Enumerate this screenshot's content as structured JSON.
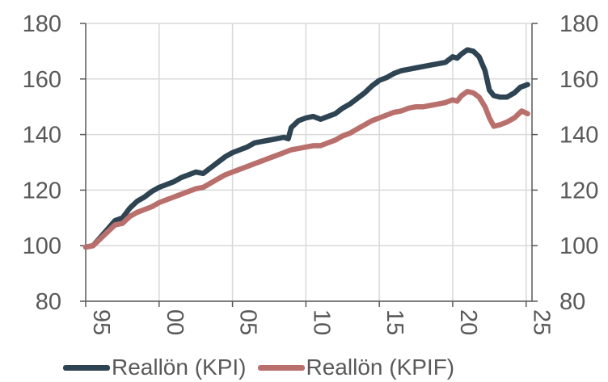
{
  "chart_data": {
    "type": "line",
    "title": "",
    "xlabel": "",
    "ylabel": "",
    "xlim": [
      1995,
      2025.4
    ],
    "ylim": [
      80,
      180
    ],
    "y_ticks": [
      "80",
      "100",
      "120",
      "140",
      "160",
      "180"
    ],
    "x_ticks": [
      {
        "value": 1995,
        "label": "95"
      },
      {
        "value": 2000,
        "label": "00"
      },
      {
        "value": 2005,
        "label": "05"
      },
      {
        "value": 2010,
        "label": "10"
      },
      {
        "value": 2015,
        "label": "15"
      },
      {
        "value": 2020,
        "label": "20"
      },
      {
        "value": 2025,
        "label": "25"
      }
    ],
    "grid": true,
    "secondary_y_axis": true,
    "legend_position": "bottom",
    "series": [
      {
        "name": "Reallön (KPI)",
        "color": "#2e4453",
        "points": [
          [
            1995.0,
            99.5
          ],
          [
            1995.5,
            100
          ],
          [
            1996.0,
            103
          ],
          [
            1996.5,
            106
          ],
          [
            1997.0,
            109
          ],
          [
            1997.5,
            110
          ],
          [
            1998.0,
            113.5
          ],
          [
            1998.5,
            116
          ],
          [
            1999.0,
            117.5
          ],
          [
            1999.5,
            119.5
          ],
          [
            2000.0,
            121
          ],
          [
            2000.5,
            122
          ],
          [
            2001.0,
            123
          ],
          [
            2001.5,
            124.5
          ],
          [
            2002.0,
            125.5
          ],
          [
            2002.5,
            126.5
          ],
          [
            2003.0,
            126
          ],
          [
            2003.5,
            128
          ],
          [
            2004.0,
            130
          ],
          [
            2004.5,
            132
          ],
          [
            2005.0,
            133.5
          ],
          [
            2005.5,
            134.5
          ],
          [
            2006.0,
            135.5
          ],
          [
            2006.5,
            137
          ],
          [
            2007.0,
            137.5
          ],
          [
            2007.5,
            138
          ],
          [
            2008.0,
            138.5
          ],
          [
            2008.5,
            139
          ],
          [
            2008.8,
            138.5
          ],
          [
            2009.0,
            142.5
          ],
          [
            2009.5,
            145
          ],
          [
            2010.0,
            146
          ],
          [
            2010.5,
            146.5
          ],
          [
            2011.0,
            145.5
          ],
          [
            2011.5,
            146.5
          ],
          [
            2012.0,
            147.5
          ],
          [
            2012.5,
            149.5
          ],
          [
            2013.0,
            151
          ],
          [
            2013.5,
            153
          ],
          [
            2014.0,
            155
          ],
          [
            2014.5,
            157.5
          ],
          [
            2015.0,
            159.5
          ],
          [
            2015.5,
            160.5
          ],
          [
            2016.0,
            162
          ],
          [
            2016.5,
            163
          ],
          [
            2017.0,
            163.5
          ],
          [
            2017.5,
            164
          ],
          [
            2018.0,
            164.5
          ],
          [
            2018.5,
            165
          ],
          [
            2019.0,
            165.5
          ],
          [
            2019.5,
            166
          ],
          [
            2020.0,
            168
          ],
          [
            2020.3,
            167.5
          ],
          [
            2020.6,
            169
          ],
          [
            2021.0,
            170.5
          ],
          [
            2021.4,
            170
          ],
          [
            2021.8,
            168
          ],
          [
            2022.2,
            163
          ],
          [
            2022.5,
            156
          ],
          [
            2022.8,
            154
          ],
          [
            2023.2,
            153.5
          ],
          [
            2023.7,
            153.5
          ],
          [
            2024.2,
            155
          ],
          [
            2024.6,
            157
          ],
          [
            2025.1,
            158
          ]
        ]
      },
      {
        "name": "Reallön (KPIF)",
        "color": "#b9706c",
        "points": [
          [
            1995.0,
            99.5
          ],
          [
            1995.5,
            100
          ],
          [
            1996.0,
            102.5
          ],
          [
            1996.5,
            105
          ],
          [
            1997.0,
            107.5
          ],
          [
            1997.5,
            108
          ],
          [
            1998.0,
            110.5
          ],
          [
            1998.5,
            112
          ],
          [
            1999.0,
            113
          ],
          [
            1999.5,
            114
          ],
          [
            2000.0,
            115.5
          ],
          [
            2000.5,
            116.5
          ],
          [
            2001.0,
            117.5
          ],
          [
            2001.5,
            118.5
          ],
          [
            2002.0,
            119.5
          ],
          [
            2002.5,
            120.5
          ],
          [
            2003.0,
            121
          ],
          [
            2003.5,
            122.5
          ],
          [
            2004.0,
            124
          ],
          [
            2004.5,
            125.5
          ],
          [
            2005.0,
            126.5
          ],
          [
            2005.5,
            127.5
          ],
          [
            2006.0,
            128.5
          ],
          [
            2006.5,
            129.5
          ],
          [
            2007.0,
            130.5
          ],
          [
            2007.5,
            131.5
          ],
          [
            2008.0,
            132.5
          ],
          [
            2008.5,
            133.5
          ],
          [
            2009.0,
            134.5
          ],
          [
            2009.5,
            135
          ],
          [
            2010.0,
            135.5
          ],
          [
            2010.5,
            136
          ],
          [
            2011.0,
            136
          ],
          [
            2011.5,
            137
          ],
          [
            2012.0,
            138
          ],
          [
            2012.5,
            139.5
          ],
          [
            2013.0,
            140.5
          ],
          [
            2013.5,
            142
          ],
          [
            2014.0,
            143.5
          ],
          [
            2014.5,
            145
          ],
          [
            2015.0,
            146
          ],
          [
            2015.5,
            147
          ],
          [
            2016.0,
            148
          ],
          [
            2016.5,
            148.5
          ],
          [
            2017.0,
            149.5
          ],
          [
            2017.5,
            150
          ],
          [
            2018.0,
            150
          ],
          [
            2018.5,
            150.5
          ],
          [
            2019.0,
            151
          ],
          [
            2019.5,
            151.5
          ],
          [
            2020.0,
            152.5
          ],
          [
            2020.3,
            152
          ],
          [
            2020.6,
            154
          ],
          [
            2021.0,
            155.5
          ],
          [
            2021.4,
            155
          ],
          [
            2021.8,
            153.5
          ],
          [
            2022.2,
            150
          ],
          [
            2022.5,
            146
          ],
          [
            2022.8,
            143
          ],
          [
            2023.2,
            143.5
          ],
          [
            2023.7,
            144.5
          ],
          [
            2024.2,
            146
          ],
          [
            2024.7,
            148.5
          ],
          [
            2025.1,
            147.5
          ]
        ]
      }
    ]
  }
}
